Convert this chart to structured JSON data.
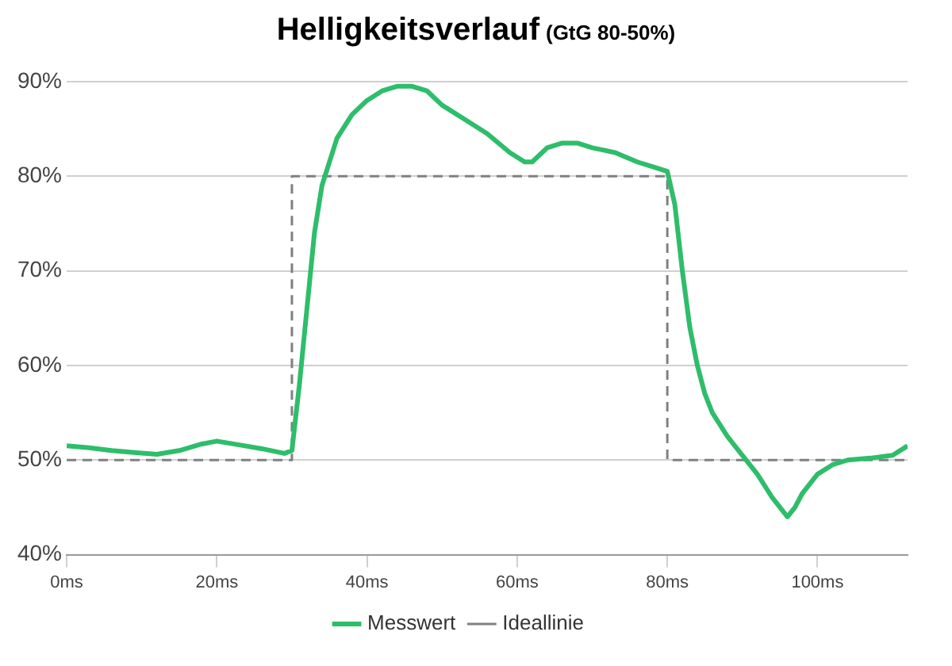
{
  "chart_data": {
    "type": "line",
    "title": "Helligkeitsverlauf",
    "subtitle": "(GtG 80-50%)",
    "xlim": [
      0,
      112
    ],
    "ylim": [
      40,
      90
    ],
    "xticks": [
      {
        "value": 0,
        "label": "0ms"
      },
      {
        "value": 20,
        "label": "20ms"
      },
      {
        "value": 40,
        "label": "40ms"
      },
      {
        "value": 60,
        "label": "60ms"
      },
      {
        "value": 80,
        "label": "80ms"
      },
      {
        "value": 100,
        "label": "100ms"
      }
    ],
    "yticks": [
      {
        "value": 40,
        "label": "40%"
      },
      {
        "value": 50,
        "label": "50%"
      },
      {
        "value": 60,
        "label": "60%"
      },
      {
        "value": 70,
        "label": "70%"
      },
      {
        "value": 80,
        "label": "80%"
      },
      {
        "value": 90,
        "label": "90%"
      }
    ],
    "grid": "y",
    "legend": "bottom",
    "marker": "none",
    "series": [
      {
        "name": "Messwert",
        "color": "#2ebd6b",
        "line_style": "solid",
        "x": [
          0,
          3,
          6,
          9,
          12,
          15,
          18,
          20,
          23,
          26,
          29,
          30,
          31,
          32,
          33,
          34,
          36,
          38,
          40,
          42,
          44,
          46,
          48,
          50,
          53,
          56,
          59,
          61,
          62,
          64,
          66,
          68,
          70,
          73,
          76,
          78,
          80,
          81,
          82,
          83,
          84,
          85,
          86,
          88,
          90,
          92,
          94,
          96,
          97,
          98,
          100,
          102,
          104,
          107,
          110,
          112
        ],
        "values": [
          51.5,
          51.3,
          51,
          50.8,
          50.6,
          51,
          51.7,
          52,
          51.6,
          51.2,
          50.7,
          51,
          58,
          66,
          74,
          79,
          84,
          86.5,
          88,
          89,
          89.5,
          89.5,
          89,
          87.5,
          86,
          84.5,
          82.5,
          81.5,
          81.5,
          83,
          83.5,
          83.5,
          83,
          82.5,
          81.5,
          81,
          80.5,
          77,
          70,
          64,
          60,
          57,
          55,
          52.5,
          50.5,
          48.5,
          46,
          44,
          45,
          46.5,
          48.5,
          49.5,
          50,
          50.2,
          50.5,
          51.5
        ]
      },
      {
        "name": "Ideallinie",
        "color": "#808080",
        "line_style": "dashed",
        "x": [
          0,
          30,
          30,
          80,
          80,
          112
        ],
        "values": [
          50,
          50,
          80,
          80,
          50,
          50
        ]
      }
    ]
  }
}
